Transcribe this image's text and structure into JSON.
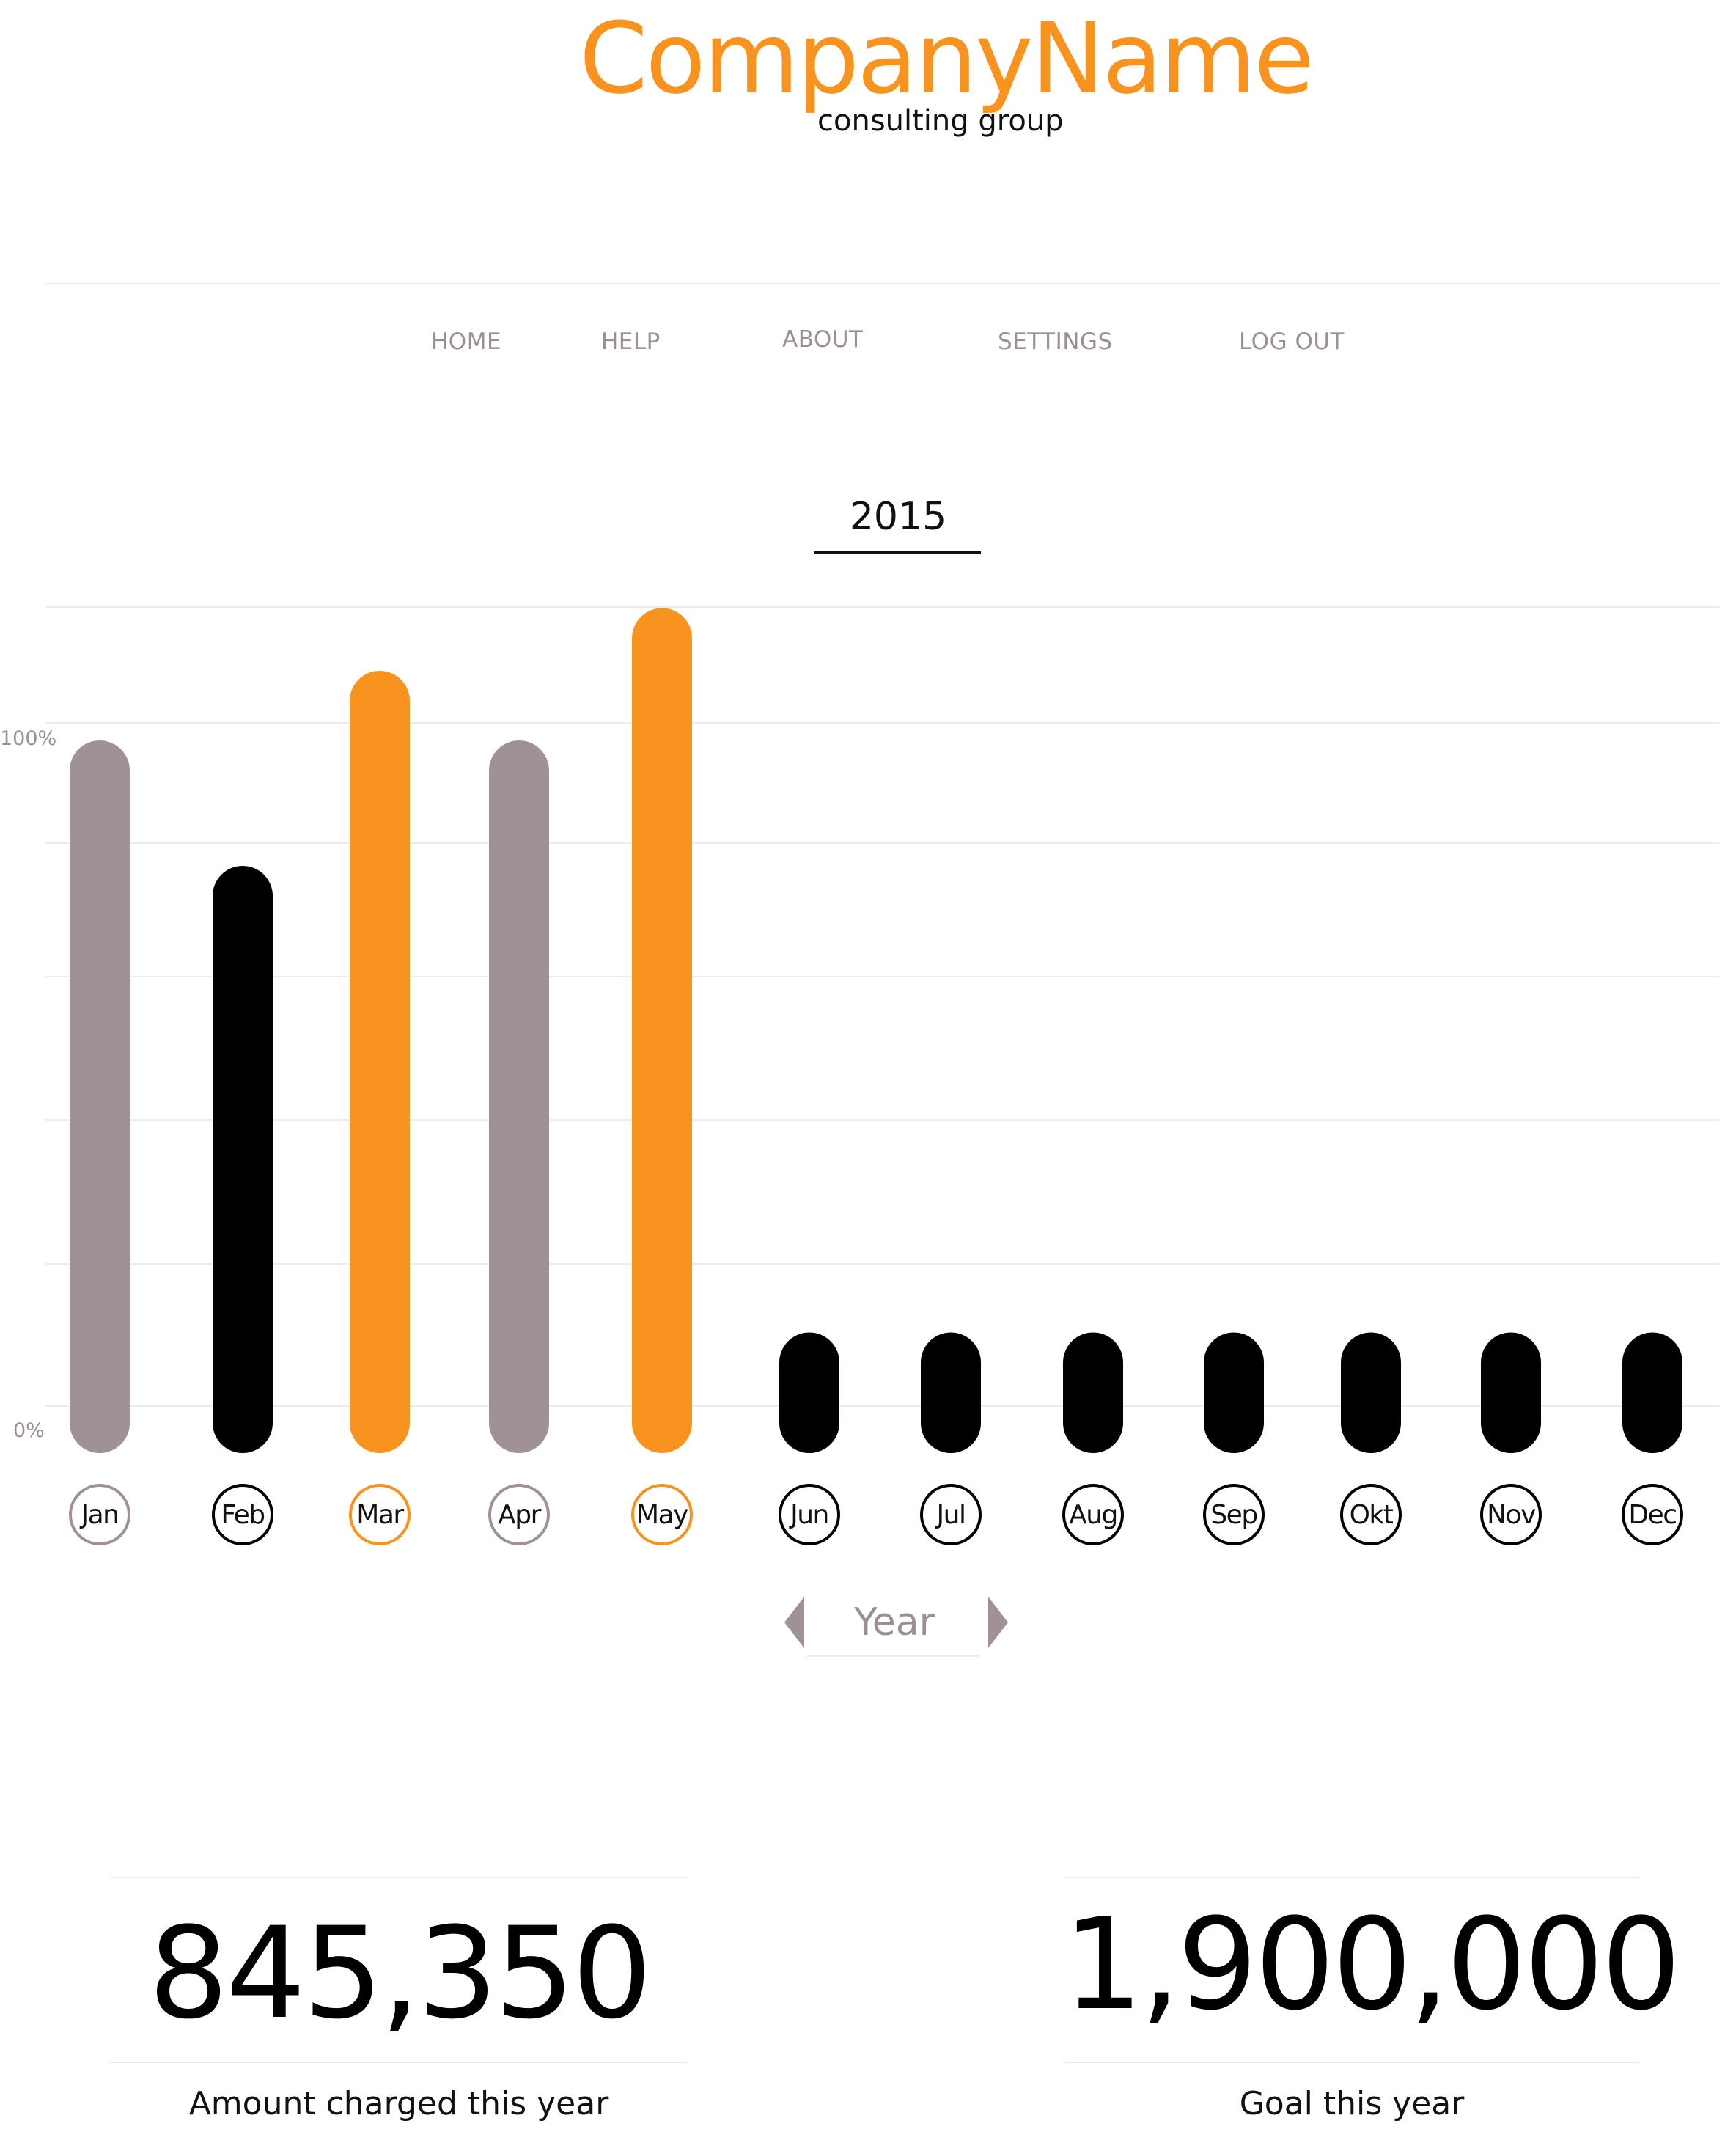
{
  "brand": {
    "name": "CompanyName",
    "tagline": "consulting group"
  },
  "nav": [
    "HOME",
    "HELP",
    "ABOUT",
    "SETTINGS",
    "LOG OUT"
  ],
  "year": "2015",
  "chart_data": {
    "type": "bar",
    "categories": [
      "Jan",
      "Feb",
      "Mar",
      "Apr",
      "May",
      "Jun",
      "Jul",
      "Aug",
      "Sep",
      "Okt",
      "Nov",
      "Dec"
    ],
    "values": [
      100,
      82,
      110,
      100,
      119,
      15,
      15,
      15,
      15,
      15,
      15,
      15
    ],
    "ylim": [
      0,
      125
    ],
    "y_ticks": [
      "100%",
      "0%"
    ],
    "colors": [
      "#a09294",
      "#000000",
      "#f7931e",
      "#a09294",
      "#f7931e",
      "#000000",
      "#000000",
      "#000000",
      "#000000",
      "#000000",
      "#000000",
      "#000000"
    ],
    "grid": true
  },
  "year_switch": {
    "label": "Year",
    "prev_icon": "triangle-left-icon",
    "next_icon": "triangle-right-icon",
    "color": "#a09294"
  },
  "stats": {
    "charged": {
      "value": "845,350",
      "label": "Amount charged this year"
    },
    "goal": {
      "value": "1,900,000",
      "label": "Goal this year"
    }
  },
  "accent_color": "#f7931e"
}
